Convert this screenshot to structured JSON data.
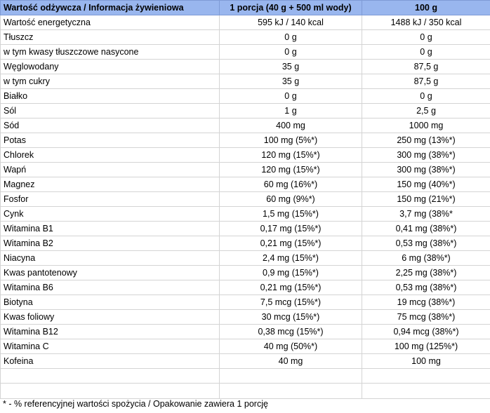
{
  "header": {
    "col1": "Wartość odżywcza / Informacja żywieniowa",
    "col2": "1 porcja (40 g + 500 ml wody)",
    "col3": "100 g"
  },
  "rows": [
    {
      "name": "Wartość energetyczna",
      "portion": "595 kJ / 140 kcal",
      "per100": "1488 kJ / 350 kcal"
    },
    {
      "name": "Tłuszcz",
      "portion": "0 g",
      "per100": "0 g"
    },
    {
      "name": "w tym kwasy tłuszczowe nasycone",
      "portion": "0 g",
      "per100": "0 g"
    },
    {
      "name": "Węglowodany",
      "portion": "35 g",
      "per100": "87,5 g"
    },
    {
      "name": "w tym cukry",
      "portion": "35 g",
      "per100": "87,5 g"
    },
    {
      "name": "Białko",
      "portion": "0 g",
      "per100": "0 g"
    },
    {
      "name": "Sól",
      "portion": "1 g",
      "per100": "2,5 g"
    },
    {
      "name": "Sód",
      "portion": "400 mg",
      "per100": "1000 mg"
    },
    {
      "name": "Potas",
      "portion": "100 mg (5%*)",
      "per100": "250 mg (13%*)"
    },
    {
      "name": "Chlorek",
      "portion": "120 mg (15%*)",
      "per100": "300 mg (38%*)"
    },
    {
      "name": "Wapń",
      "portion": "120 mg (15%*)",
      "per100": "300 mg (38%*)"
    },
    {
      "name": "Magnez",
      "portion": "60 mg (16%*)",
      "per100": "150 mg (40%*)"
    },
    {
      "name": "Fosfor",
      "portion": "60 mg (9%*)",
      "per100": "150 mg (21%*)"
    },
    {
      "name": "Cynk",
      "portion": "1,5 mg (15%*)",
      "per100": "3,7 mg (38%*"
    },
    {
      "name": "Witamina B1",
      "portion": "0,17 mg (15%*)",
      "per100": "0,41 mg (38%*)"
    },
    {
      "name": "Witamina B2",
      "portion": "0,21 mg (15%*)",
      "per100": "0,53 mg (38%*)"
    },
    {
      "name": "Niacyna",
      "portion": "2,4 mg (15%*)",
      "per100": "6 mg (38%*)"
    },
    {
      "name": "Kwas pantotenowy",
      "portion": "0,9 mg (15%*)",
      "per100": "2,25 mg (38%*)"
    },
    {
      "name": "Witamina B6",
      "portion": "0,21 mg (15%*)",
      "per100": "0,53 mg (38%*)"
    },
    {
      "name": "Biotyna",
      "portion": "7,5 mcg (15%*)",
      "per100": "19 mcg (38%*)"
    },
    {
      "name": "Kwas foliowy",
      "portion": "30 mcg (15%*)",
      "per100": "75 mcg (38%*)"
    },
    {
      "name": "Witamina B12",
      "portion": "0,38 mcg (15%*)",
      "per100": "0,94 mcg (38%*)"
    },
    {
      "name": "Witamina C",
      "portion": "40 mg (50%*)",
      "per100": "100 mg (125%*)"
    },
    {
      "name": "Kofeina",
      "portion": "40 mg",
      "per100": "100 mg"
    }
  ],
  "footnote": "* - % referencyjnej wartości spożycia / Opakowanie zawiera 1 porcję",
  "colors": {
    "header_bg": "#99b6ee",
    "grid": "#d4d4d4"
  }
}
